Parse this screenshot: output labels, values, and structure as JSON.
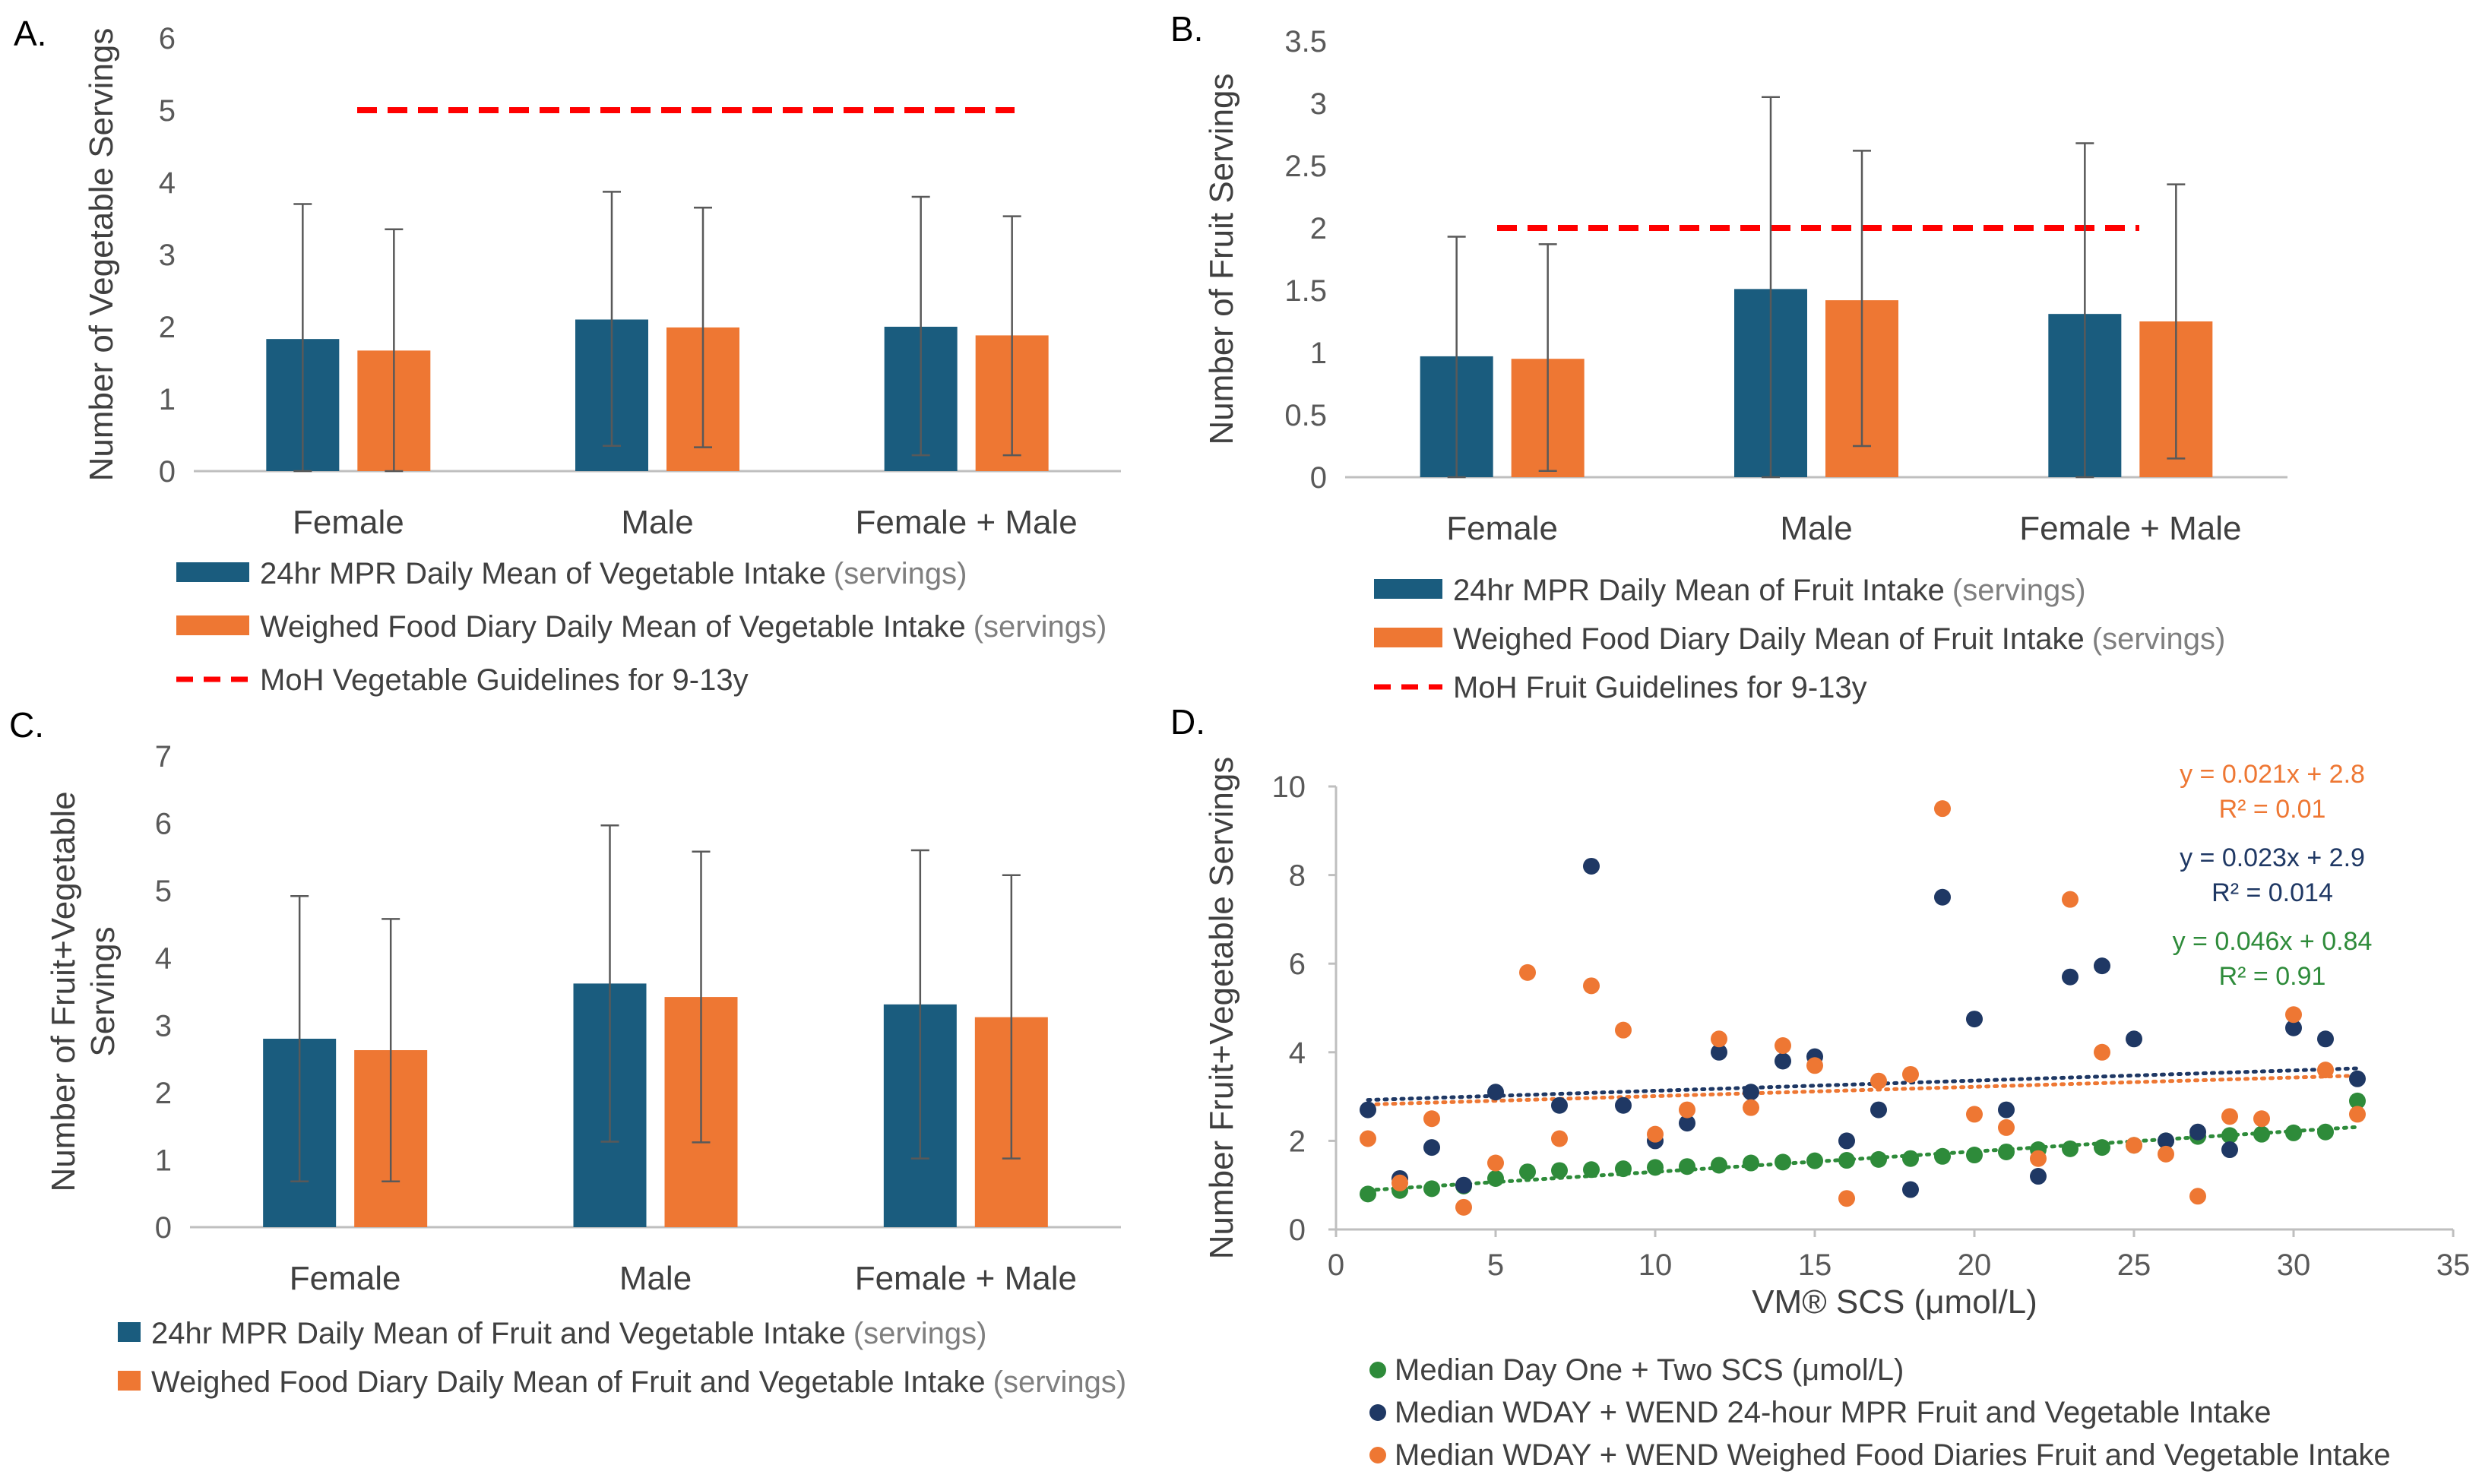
{
  "colors": {
    "blue": "#1a5c7e",
    "orange": "#ee7733",
    "red": "#ff0000",
    "navy": "#1f3864",
    "green": "#2e8b3a",
    "axis": "#bfbfbf",
    "err": "#595959"
  },
  "chart_data": [
    {
      "panel": "A.",
      "type": "bar",
      "ylabel": "Number of Vegetable Servings",
      "ylim": [
        0,
        6
      ],
      "yticks": [
        "0",
        "1",
        "2",
        "3",
        "4",
        "5",
        "6"
      ],
      "categories": [
        "Female",
        "Male",
        "Female + Male"
      ],
      "series": [
        {
          "name": "24hr MPR Daily Mean of Vegetable Intake",
          "unit": "(servings)",
          "values": [
            1.83,
            2.1,
            2.0
          ],
          "err_high": [
            3.7,
            3.87,
            3.8
          ],
          "err_low": [
            0.0,
            0.35,
            0.22
          ]
        },
        {
          "name": "Weighed Food Diary  Daily Mean of Vegetable Intake",
          "unit": "(servings)",
          "values": [
            1.67,
            1.99,
            1.88
          ],
          "err_high": [
            3.35,
            3.65,
            3.53
          ],
          "err_low": [
            0.0,
            0.33,
            0.22
          ]
        }
      ],
      "guideline": {
        "name": "MoH Vegetable Guidelines for 9-13y",
        "value": 5
      }
    },
    {
      "panel": "B.",
      "type": "bar",
      "ylabel": "Number of Fruit Servings",
      "ylim": [
        0,
        3.5
      ],
      "yticks": [
        "0",
        "0.5",
        "1",
        "1.5",
        "2",
        "2.5",
        "3",
        "3.5"
      ],
      "categories": [
        "Female",
        "Male",
        "Female + Male"
      ],
      "series": [
        {
          "name": "24hr MPR Daily Mean of Fruit Intake",
          "unit": "(servings)",
          "values": [
            0.97,
            1.51,
            1.31
          ],
          "err_high": [
            1.93,
            3.05,
            2.68
          ],
          "err_low": [
            0.0,
            0.0,
            0.0
          ]
        },
        {
          "name": "Weighed Food Diary Daily Mean of Fruit Intake",
          "unit": "(servings)",
          "values": [
            0.95,
            1.42,
            1.25
          ],
          "err_high": [
            1.87,
            2.62,
            2.35
          ],
          "err_low": [
            0.05,
            0.25,
            0.15
          ]
        }
      ],
      "guideline": {
        "name": "MoH Fruit Guidelines for 9-13y",
        "value": 2
      }
    },
    {
      "panel": "C.",
      "type": "bar",
      "ylabel_lines": [
        "Number of Fruit+Vegetable",
        "Servings"
      ],
      "ylim": [
        0,
        7
      ],
      "yticks": [
        "0",
        "1",
        "2",
        "3",
        "4",
        "5",
        "6",
        "7"
      ],
      "categories": [
        "Female",
        "Male",
        "Female + Male"
      ],
      "series": [
        {
          "name": "24hr MPR Daily Mean of Fruit and Vegetable Intake",
          "unit": "(servings)",
          "values": [
            2.8,
            3.62,
            3.31
          ],
          "err_high": [
            4.92,
            5.97,
            5.6
          ],
          "err_low": [
            0.68,
            1.27,
            1.02
          ]
        },
        {
          "name": "Weighed Food Diary  Daily Mean of Fruit and Vegetable Intake",
          "unit": "(servings)",
          "values": [
            2.63,
            3.42,
            3.12
          ],
          "err_high": [
            4.58,
            5.58,
            5.23
          ],
          "err_low": [
            0.68,
            1.26,
            1.02
          ]
        }
      ]
    },
    {
      "panel": "D.",
      "type": "scatter",
      "xlabel": "VM® SCS (μmol/L)",
      "ylabel": "Number Fruit+Vegetable Servings",
      "xlim": [
        0,
        35
      ],
      "ylim": [
        0,
        10
      ],
      "xticks": [
        "0",
        "5",
        "10",
        "15",
        "20",
        "25",
        "30",
        "35"
      ],
      "yticks": [
        "0",
        "2",
        "4",
        "6",
        "8",
        "10"
      ],
      "series": [
        {
          "name": "Median Day One + Two  SCS (μmol/L)",
          "color": "green",
          "x": [
            1,
            2,
            3,
            4,
            5,
            6,
            7,
            8,
            9,
            10,
            11,
            12,
            13,
            14,
            15,
            16,
            17,
            18,
            19,
            20,
            21,
            22,
            23,
            24,
            25,
            26,
            27,
            28,
            29,
            30,
            31,
            32
          ],
          "y": [
            0.8,
            0.88,
            0.92,
            0.98,
            1.15,
            1.3,
            1.33,
            1.35,
            1.37,
            1.4,
            1.42,
            1.45,
            1.5,
            1.52,
            1.55,
            1.56,
            1.58,
            1.6,
            1.65,
            1.68,
            1.75,
            1.8,
            1.82,
            1.85,
            1.9,
            2.0,
            2.1,
            2.12,
            2.15,
            2.18,
            2.2,
            2.9
          ],
          "trend": {
            "slope": 0.046,
            "intercept": 0.84,
            "equation": "y = 0.046x + 0.84",
            "r2": "R² = 0.91"
          }
        },
        {
          "name": "Median WDAY + WEND 24-hour MPR  Fruit and Vegetable Intake",
          "color": "navy",
          "x": [
            1,
            2,
            3,
            4,
            5,
            7,
            8,
            9,
            10,
            11,
            12,
            13,
            14,
            15,
            16,
            17,
            18,
            19,
            20,
            21,
            22,
            23,
            24,
            25,
            26,
            27,
            28,
            30,
            31,
            32
          ],
          "y": [
            2.7,
            1.15,
            1.85,
            1.0,
            3.1,
            2.8,
            8.2,
            2.8,
            2.0,
            2.4,
            4.0,
            3.1,
            3.8,
            3.9,
            2.0,
            2.7,
            0.9,
            7.5,
            4.75,
            2.7,
            1.2,
            5.7,
            5.95,
            4.3,
            2.0,
            2.2,
            1.8,
            4.55,
            4.3,
            3.4
          ],
          "trend": {
            "slope": 0.023,
            "intercept": 2.9,
            "equation": "y = 0.023x + 2.9",
            "r2": "R² = 0.014"
          }
        },
        {
          "name": "Median WDAY + WEND Weighed Food Diaries Fruit and Vegetable Intake",
          "color": "orange",
          "x": [
            1,
            2,
            3,
            4,
            5,
            6,
            7,
            8,
            9,
            10,
            11,
            12,
            13,
            14,
            15,
            16,
            17,
            18,
            19,
            20,
            21,
            22,
            23,
            24,
            25,
            26,
            27,
            28,
            29,
            30,
            31,
            32
          ],
          "y": [
            2.05,
            1.05,
            2.5,
            0.5,
            1.5,
            5.8,
            2.05,
            5.5,
            4.5,
            2.15,
            2.7,
            4.3,
            2.75,
            4.15,
            3.7,
            0.7,
            3.35,
            3.5,
            9.5,
            2.6,
            2.3,
            1.6,
            7.45,
            4.0,
            1.9,
            1.7,
            0.75,
            2.55,
            2.5,
            4.85,
            3.6,
            2.6
          ],
          "trend": {
            "slope": 0.021,
            "intercept": 2.8,
            "equation": "y = 0.021x + 2.8",
            "r2": "R² = 0.01"
          }
        }
      ]
    }
  ]
}
